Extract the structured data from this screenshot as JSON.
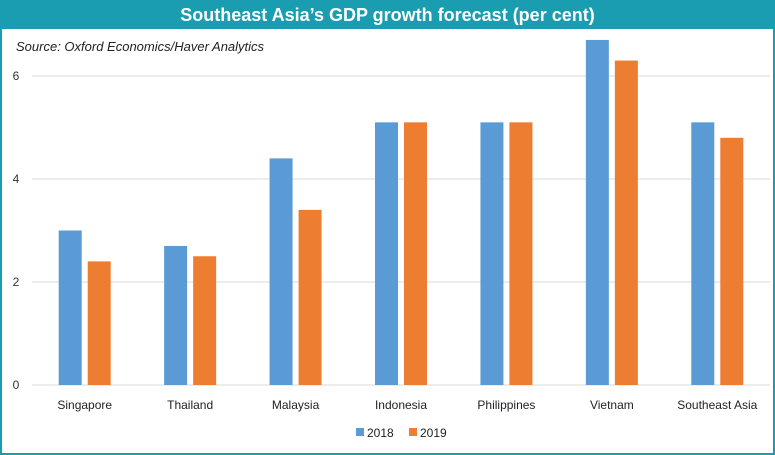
{
  "chart_data": {
    "type": "bar",
    "title": "Southeast Asia’s GDP growth forecast (per cent)",
    "source": "Source: Oxford Economics/Haver Analytics",
    "categories": [
      "Singapore",
      "Thailand",
      "Malaysia",
      "Indonesia",
      "Philippines",
      "Vietnam",
      "Southeast Asia"
    ],
    "series": [
      {
        "name": "2018",
        "color": "#5b9bd5",
        "values": [
          3.0,
          2.7,
          4.4,
          5.1,
          5.1,
          6.7,
          5.1
        ]
      },
      {
        "name": "2019",
        "color": "#ed7d31",
        "values": [
          2.4,
          2.5,
          3.4,
          5.1,
          5.1,
          6.3,
          4.8
        ]
      }
    ],
    "yticks": [
      "0",
      "2",
      "4",
      "6"
    ],
    "ylim": [
      0,
      7
    ],
    "grid": true,
    "legend": "bottom",
    "header_color": "#1a9db0"
  }
}
